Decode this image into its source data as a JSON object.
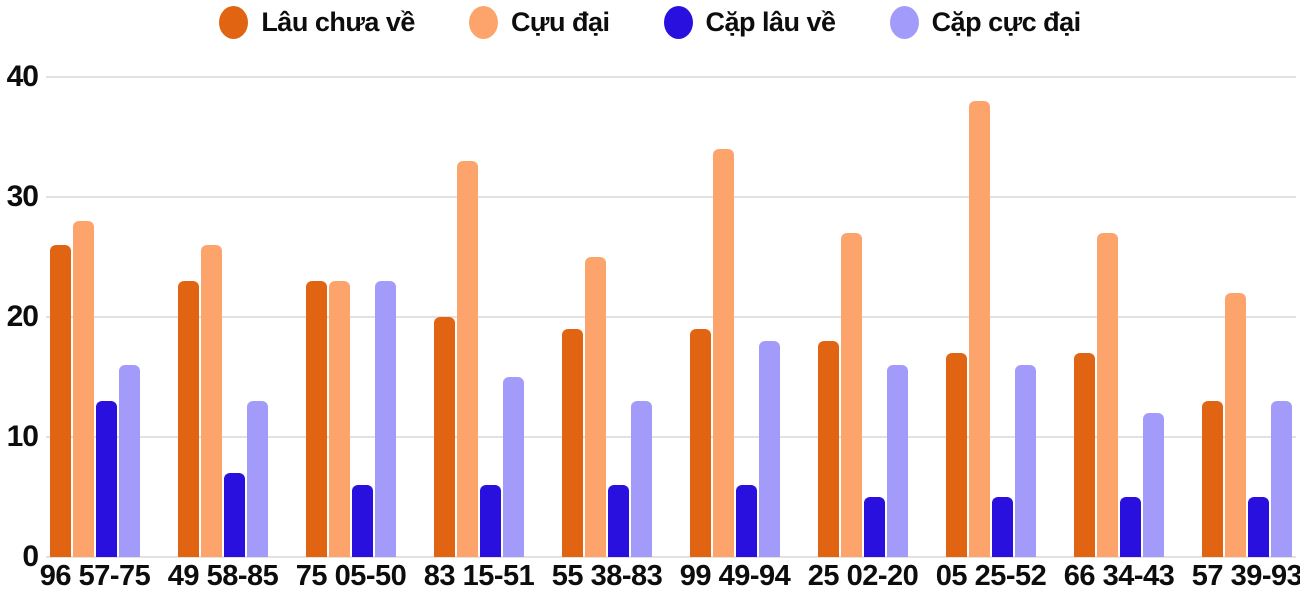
{
  "chart_data": {
    "type": "bar",
    "title": "",
    "xlabel": "",
    "ylabel": "",
    "categories": [
      "96 57-75",
      "49 58-85",
      "75 05-50",
      "83 15-51",
      "55 38-83",
      "99 49-94",
      "25 02-20",
      "05 25-52",
      "66 34-43",
      "57 39-93"
    ],
    "series": [
      {
        "name": "Lâu chưa về",
        "color": "#E06412",
        "values": [
          26,
          23,
          23,
          20,
          19,
          19,
          18,
          17,
          17,
          13
        ]
      },
      {
        "name": "Cựu đại",
        "color": "#FDA46C",
        "values": [
          28,
          26,
          23,
          33,
          25,
          34,
          27,
          38,
          27,
          22
        ]
      },
      {
        "name": "Cặp lâu về",
        "color": "#2A10DE",
        "values": [
          13,
          7,
          6,
          6,
          6,
          6,
          5,
          5,
          5,
          5
        ]
      },
      {
        "name": "Cặp cực đại",
        "color": "#A39BFA",
        "values": [
          16,
          13,
          23,
          15,
          13,
          18,
          16,
          16,
          12,
          13
        ]
      }
    ],
    "ylim": [
      0,
      40
    ],
    "yticks": [
      0,
      10,
      20,
      30,
      40
    ],
    "grid": true,
    "legend_position": "top"
  },
  "style": {
    "grid_color": "#E2E2E2",
    "text_color": "#0D0D0D",
    "background": "#FFFFFF"
  }
}
